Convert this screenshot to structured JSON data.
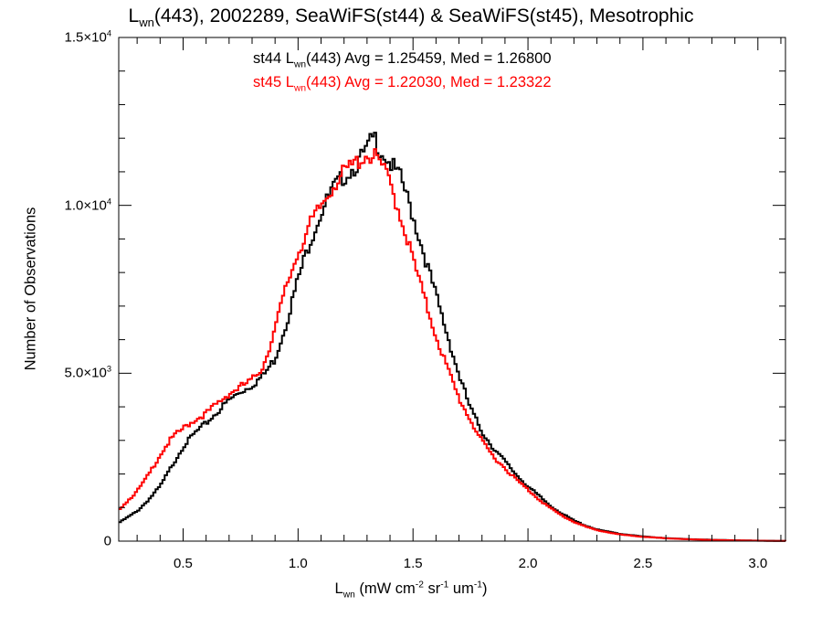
{
  "title": {
    "prefix": "L",
    "sub": "wn",
    "rest": "(443), 2002289, SeaWiFS(st44) & SeaWiFS(st45), Mesotrophic"
  },
  "stats": {
    "st44": {
      "pre": "st44 L",
      "sub": "wn",
      "post": "(443) Avg = 1.25459, Med = 1.26800",
      "color": "#000000"
    },
    "st45": {
      "pre": "st45 L",
      "sub": "wn",
      "post": "(443) Avg = 1.22030, Med = 1.23322",
      "color": "#ff0000"
    }
  },
  "axes": {
    "xlabel": {
      "a": "L",
      "a_sub": "wn",
      "b": " (mW cm",
      "b_sup": "-2",
      "c": " sr",
      "c_sup": "-1",
      "d": " um",
      "d_sup": "-1",
      "e": ")"
    },
    "ylabel": "Number of Observations",
    "yticks": [
      {
        "value": 0,
        "mant": "0",
        "exp": ""
      },
      {
        "value": 5000,
        "mant": "5.0×10",
        "exp": "3"
      },
      {
        "value": 10000,
        "mant": "1.0×10",
        "exp": "4"
      },
      {
        "value": 15000,
        "mant": "1.5×10",
        "exp": "4"
      }
    ],
    "xticks": [
      "0.5",
      "1.0",
      "1.5",
      "2.0",
      "2.5",
      "3.0"
    ]
  },
  "chart_data": {
    "type": "line",
    "step": true,
    "xlim": [
      0.22,
      3.12
    ],
    "ylim": [
      0,
      15000
    ],
    "xtick_values": [
      0.5,
      1.0,
      1.5,
      2.0,
      2.5,
      3.0
    ],
    "series": [
      {
        "name": "st44",
        "color": "#000000",
        "points": [
          [
            0.22,
            550
          ],
          [
            0.3,
            900
          ],
          [
            0.35,
            1250
          ],
          [
            0.4,
            1650
          ],
          [
            0.45,
            2250
          ],
          [
            0.5,
            2850
          ],
          [
            0.55,
            3250
          ],
          [
            0.6,
            3550
          ],
          [
            0.65,
            3900
          ],
          [
            0.7,
            4250
          ],
          [
            0.75,
            4500
          ],
          [
            0.8,
            4700
          ],
          [
            0.85,
            5000
          ],
          [
            0.9,
            5500
          ],
          [
            0.95,
            6600
          ],
          [
            1.0,
            7900
          ],
          [
            1.05,
            9000
          ],
          [
            1.1,
            9900
          ],
          [
            1.15,
            10600
          ],
          [
            1.2,
            11000
          ],
          [
            1.25,
            11300
          ],
          [
            1.3,
            11800
          ],
          [
            1.33,
            12200
          ],
          [
            1.35,
            11900
          ],
          [
            1.4,
            11400
          ],
          [
            1.45,
            10900
          ],
          [
            1.5,
            9800
          ],
          [
            1.55,
            8600
          ],
          [
            1.6,
            7400
          ],
          [
            1.65,
            6200
          ],
          [
            1.7,
            5000
          ],
          [
            1.75,
            4000
          ],
          [
            1.8,
            3300
          ],
          [
            1.85,
            2800
          ],
          [
            1.9,
            2400
          ],
          [
            1.95,
            2000
          ],
          [
            2.0,
            1650
          ],
          [
            2.05,
            1350
          ],
          [
            2.1,
            1050
          ],
          [
            2.15,
            820
          ],
          [
            2.2,
            620
          ],
          [
            2.25,
            470
          ],
          [
            2.3,
            350
          ],
          [
            2.4,
            220
          ],
          [
            2.5,
            140
          ],
          [
            2.6,
            90
          ],
          [
            2.7,
            60
          ],
          [
            2.8,
            40
          ],
          [
            2.9,
            25
          ],
          [
            3.0,
            15
          ],
          [
            3.12,
            5
          ]
        ]
      },
      {
        "name": "st45",
        "color": "#ff0000",
        "points": [
          [
            0.22,
            950
          ],
          [
            0.3,
            1500
          ],
          [
            0.35,
            2000
          ],
          [
            0.4,
            2600
          ],
          [
            0.45,
            3100
          ],
          [
            0.5,
            3400
          ],
          [
            0.55,
            3650
          ],
          [
            0.6,
            3850
          ],
          [
            0.65,
            4150
          ],
          [
            0.7,
            4450
          ],
          [
            0.75,
            4650
          ],
          [
            0.8,
            4850
          ],
          [
            0.85,
            5300
          ],
          [
            0.9,
            6400
          ],
          [
            0.95,
            7700
          ],
          [
            1.0,
            8700
          ],
          [
            1.05,
            9500
          ],
          [
            1.1,
            10100
          ],
          [
            1.15,
            10700
          ],
          [
            1.2,
            11100
          ],
          [
            1.25,
            11400
          ],
          [
            1.3,
            11650
          ],
          [
            1.35,
            11500
          ],
          [
            1.4,
            10800
          ],
          [
            1.45,
            9700
          ],
          [
            1.5,
            8500
          ],
          [
            1.55,
            7300
          ],
          [
            1.6,
            6200
          ],
          [
            1.65,
            5200
          ],
          [
            1.7,
            4300
          ],
          [
            1.75,
            3650
          ],
          [
            1.8,
            3000
          ],
          [
            1.85,
            2550
          ],
          [
            1.9,
            2200
          ],
          [
            1.95,
            1850
          ],
          [
            2.0,
            1550
          ],
          [
            2.05,
            1250
          ],
          [
            2.1,
            980
          ],
          [
            2.15,
            760
          ],
          [
            2.2,
            580
          ],
          [
            2.25,
            440
          ],
          [
            2.3,
            330
          ],
          [
            2.4,
            200
          ],
          [
            2.5,
            130
          ],
          [
            2.6,
            85
          ],
          [
            2.7,
            55
          ],
          [
            2.8,
            35
          ],
          [
            2.9,
            22
          ],
          [
            3.0,
            12
          ],
          [
            3.12,
            4
          ]
        ]
      }
    ]
  }
}
